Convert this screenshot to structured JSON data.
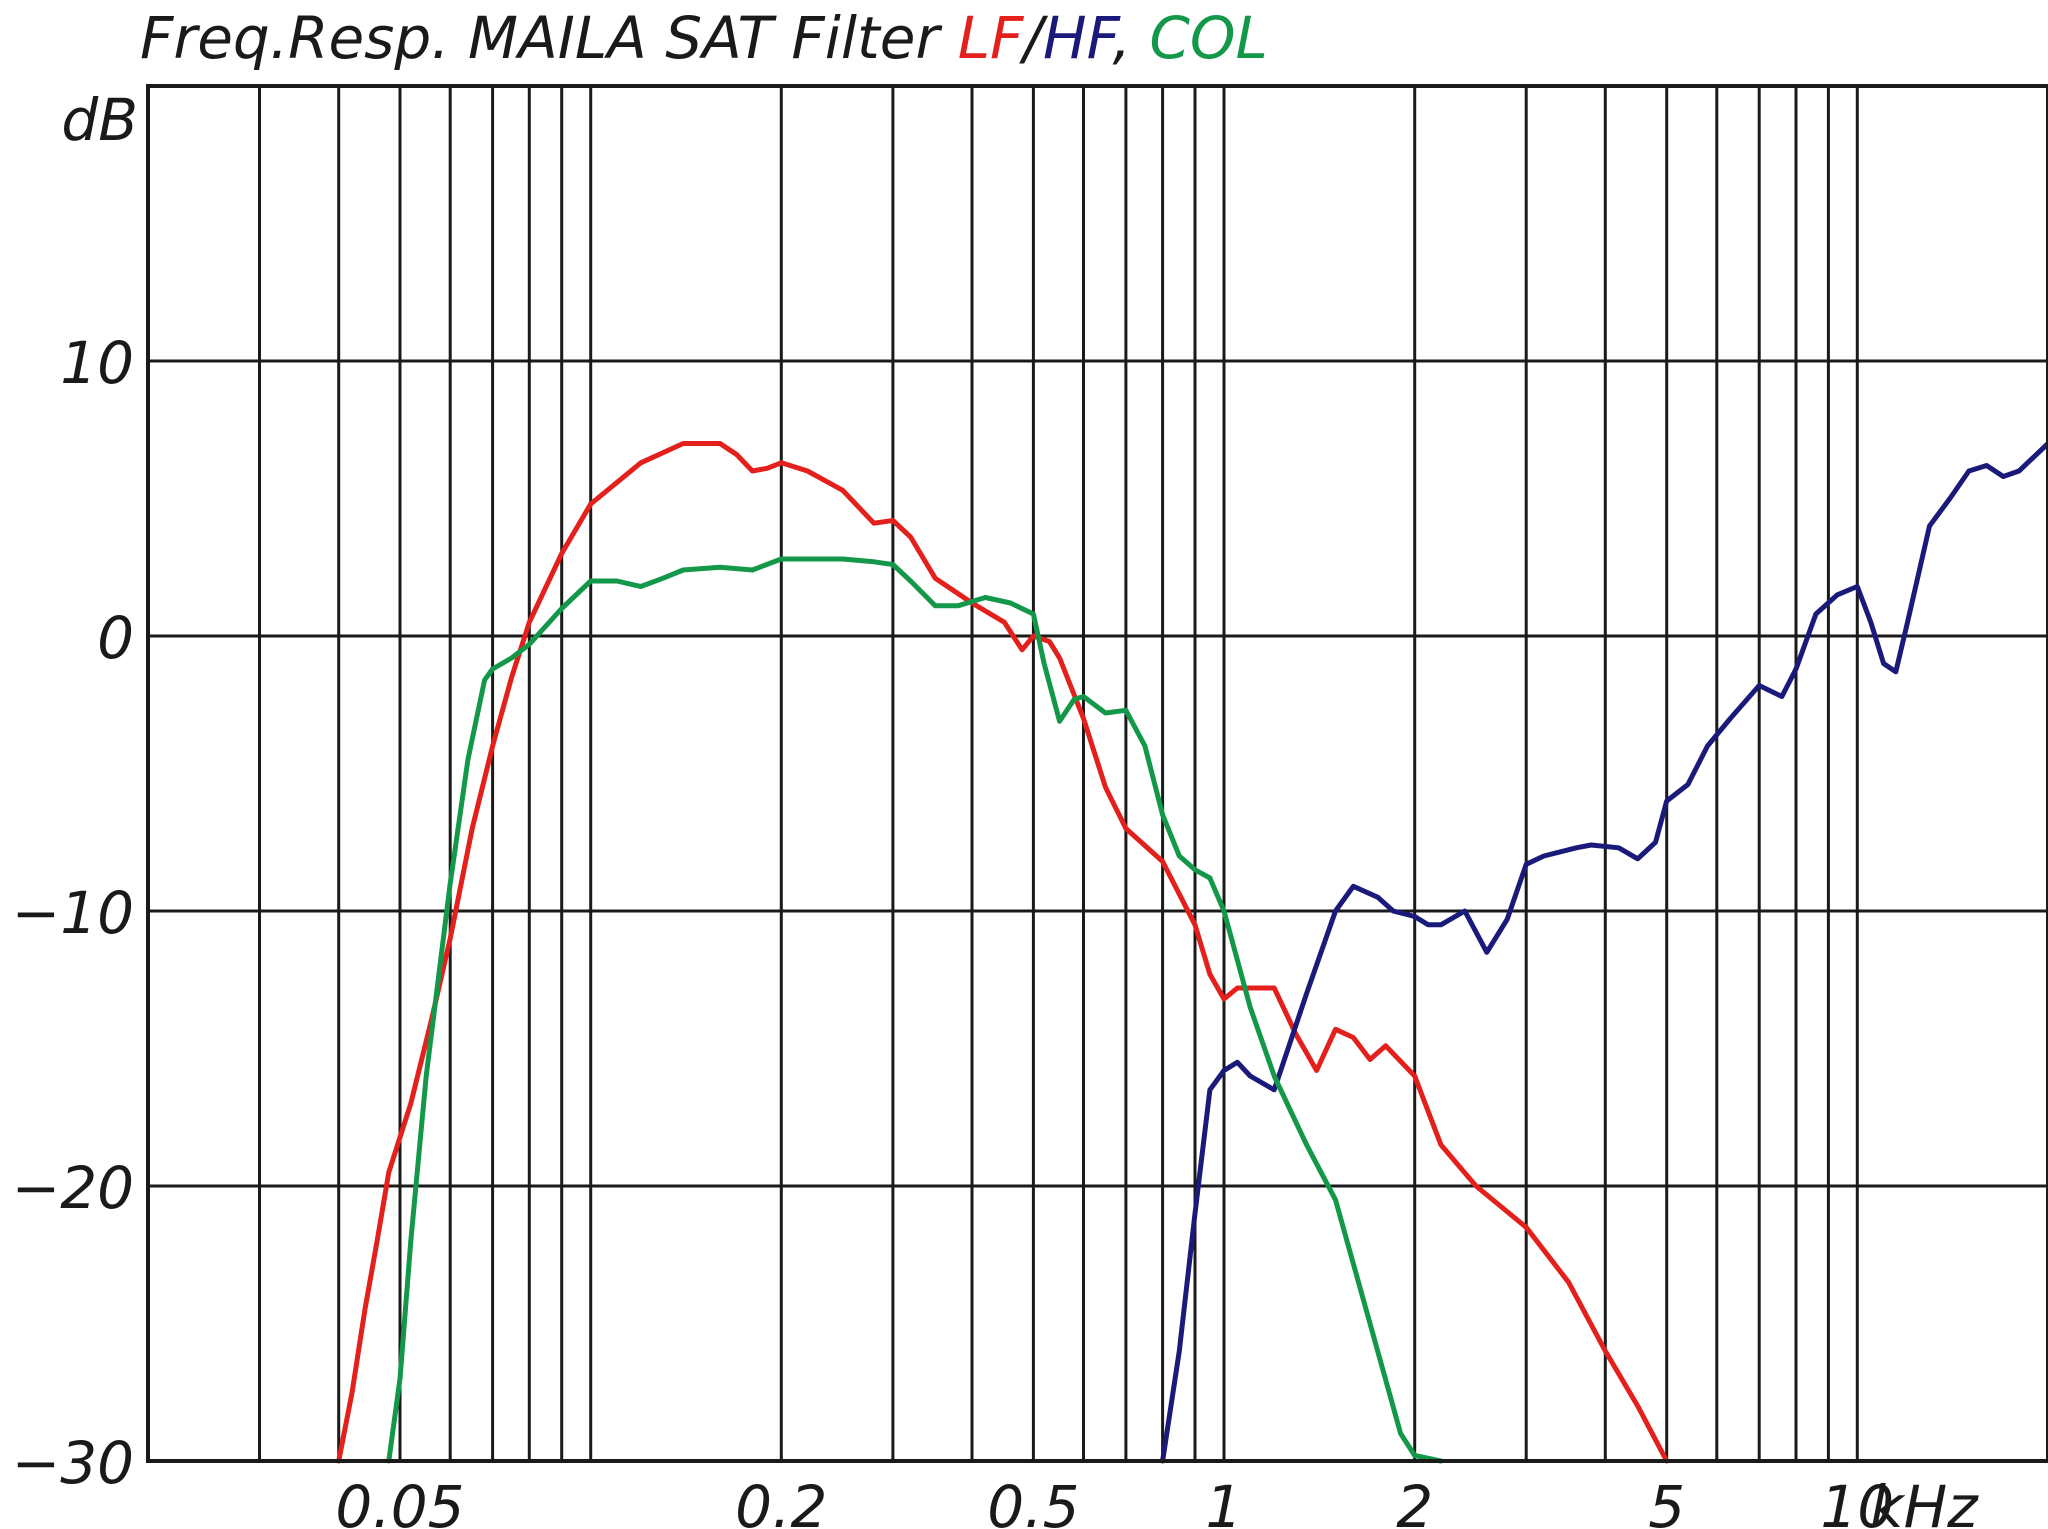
{
  "chart_data": {
    "type": "line",
    "title": {
      "prefix": "Freq.Resp. MAILA SAT Filter ",
      "parts": [
        {
          "text": "LF",
          "color": "#e3201b"
        },
        {
          "text": "/",
          "color": "#1a1a1a"
        },
        {
          "text": "HF",
          "color": "#1a1a7a"
        },
        {
          "text": ", ",
          "color": "#1a1a1a"
        },
        {
          "text": "COL",
          "color": "#13984a"
        }
      ]
    },
    "ylabel": "dB",
    "xunit": "kHz",
    "x_scale": "log",
    "xlim": [
      0.02,
      20
    ],
    "ylim": [
      -30,
      20
    ],
    "grid": true,
    "y_ticks": [
      {
        "value": 10,
        "label": "10"
      },
      {
        "value": 0,
        "label": "0"
      },
      {
        "value": -10,
        "label": "−10"
      },
      {
        "value": -20,
        "label": "−20"
      },
      {
        "value": -30,
        "label": "−30"
      }
    ],
    "x_tick_labels": [
      {
        "value": 0.05,
        "label": "0.05"
      },
      {
        "value": 0.2,
        "label": "0.2"
      },
      {
        "value": 0.5,
        "label": "0.5"
      },
      {
        "value": 1,
        "label": "1"
      },
      {
        "value": 2,
        "label": "2"
      },
      {
        "value": 5,
        "label": "5"
      },
      {
        "value": 10,
        "label": "10"
      }
    ],
    "x_unit_label": "kHz",
    "x_gridlines": [
      0.03,
      0.04,
      0.05,
      0.06,
      0.07,
      0.08,
      0.09,
      0.1,
      0.2,
      0.3,
      0.4,
      0.5,
      0.6,
      0.7,
      0.8,
      0.9,
      1,
      2,
      3,
      4,
      5,
      6,
      7,
      8,
      9,
      10
    ],
    "series": [
      {
        "name": "LF",
        "color": "#e3201b",
        "points": [
          [
            0.04,
            -30
          ],
          [
            0.042,
            -27.5
          ],
          [
            0.044,
            -24.5
          ],
          [
            0.046,
            -22
          ],
          [
            0.048,
            -19.5
          ],
          [
            0.052,
            -17
          ],
          [
            0.056,
            -14
          ],
          [
            0.06,
            -11
          ],
          [
            0.065,
            -7
          ],
          [
            0.07,
            -4
          ],
          [
            0.075,
            -1.5
          ],
          [
            0.08,
            0.5
          ],
          [
            0.09,
            3
          ],
          [
            0.1,
            4.8
          ],
          [
            0.12,
            6.3
          ],
          [
            0.14,
            7
          ],
          [
            0.16,
            7
          ],
          [
            0.17,
            6.6
          ],
          [
            0.18,
            6
          ],
          [
            0.19,
            6.1
          ],
          [
            0.2,
            6.3
          ],
          [
            0.22,
            6
          ],
          [
            0.25,
            5.3
          ],
          [
            0.28,
            4.1
          ],
          [
            0.3,
            4.2
          ],
          [
            0.32,
            3.6
          ],
          [
            0.35,
            2.1
          ],
          [
            0.4,
            1.2
          ],
          [
            0.45,
            0.5
          ],
          [
            0.48,
            -0.5
          ],
          [
            0.5,
            0
          ],
          [
            0.53,
            -0.2
          ],
          [
            0.55,
            -0.8
          ],
          [
            0.6,
            -3
          ],
          [
            0.65,
            -5.5
          ],
          [
            0.7,
            -7
          ],
          [
            0.8,
            -8.2
          ],
          [
            0.9,
            -10.5
          ],
          [
            0.95,
            -12.3
          ],
          [
            1.0,
            -13.2
          ],
          [
            1.05,
            -12.8
          ],
          [
            1.2,
            -12.8
          ],
          [
            1.3,
            -14.5
          ],
          [
            1.4,
            -15.8
          ],
          [
            1.5,
            -14.3
          ],
          [
            1.6,
            -14.6
          ],
          [
            1.7,
            -15.4
          ],
          [
            1.8,
            -14.9
          ],
          [
            2.0,
            -16
          ],
          [
            2.2,
            -18.5
          ],
          [
            2.5,
            -20
          ],
          [
            3.0,
            -21.5
          ],
          [
            3.5,
            -23.5
          ],
          [
            4.0,
            -26
          ],
          [
            4.5,
            -28
          ],
          [
            5.0,
            -30
          ]
        ]
      },
      {
        "name": "HF",
        "color": "#1a1a7a",
        "points": [
          [
            0.8,
            -30
          ],
          [
            0.85,
            -26
          ],
          [
            0.9,
            -21
          ],
          [
            0.95,
            -16.5
          ],
          [
            1.0,
            -15.8
          ],
          [
            1.05,
            -15.5
          ],
          [
            1.1,
            -16
          ],
          [
            1.2,
            -16.5
          ],
          [
            1.35,
            -13
          ],
          [
            1.5,
            -10
          ],
          [
            1.6,
            -9.1
          ],
          [
            1.75,
            -9.5
          ],
          [
            1.85,
            -10
          ],
          [
            2.0,
            -10.2
          ],
          [
            2.1,
            -10.5
          ],
          [
            2.2,
            -10.5
          ],
          [
            2.4,
            -10
          ],
          [
            2.6,
            -11.5
          ],
          [
            2.8,
            -10.3
          ],
          [
            3.0,
            -8.3
          ],
          [
            3.2,
            -8
          ],
          [
            3.6,
            -7.7
          ],
          [
            3.8,
            -7.6
          ],
          [
            4.2,
            -7.7
          ],
          [
            4.5,
            -8.1
          ],
          [
            4.8,
            -7.5
          ],
          [
            5.0,
            -6
          ],
          [
            5.4,
            -5.4
          ],
          [
            5.8,
            -4
          ],
          [
            6.3,
            -3
          ],
          [
            7.0,
            -1.8
          ],
          [
            7.6,
            -2.2
          ],
          [
            8.0,
            -1.2
          ],
          [
            8.6,
            0.8
          ],
          [
            9.3,
            1.5
          ],
          [
            10.0,
            1.8
          ],
          [
            10.5,
            0.5
          ],
          [
            11.0,
            -1
          ],
          [
            11.5,
            -1.3
          ],
          [
            12.0,
            0.5
          ],
          [
            13.0,
            4
          ],
          [
            14.0,
            5
          ],
          [
            15.0,
            6
          ],
          [
            16.0,
            6.2
          ],
          [
            17.0,
            5.8
          ],
          [
            18.0,
            6
          ],
          [
            20.0,
            7
          ]
        ]
      },
      {
        "name": "COL",
        "color": "#13984a",
        "points": [
          [
            0.048,
            -30
          ],
          [
            0.05,
            -27
          ],
          [
            0.052,
            -22
          ],
          [
            0.055,
            -16
          ],
          [
            0.06,
            -9
          ],
          [
            0.064,
            -4.5
          ],
          [
            0.068,
            -1.6
          ],
          [
            0.07,
            -1.2
          ],
          [
            0.075,
            -0.8
          ],
          [
            0.08,
            -0.3
          ],
          [
            0.09,
            1
          ],
          [
            0.1,
            2
          ],
          [
            0.11,
            2
          ],
          [
            0.12,
            1.8
          ],
          [
            0.13,
            2.1
          ],
          [
            0.14,
            2.4
          ],
          [
            0.16,
            2.5
          ],
          [
            0.18,
            2.4
          ],
          [
            0.2,
            2.8
          ],
          [
            0.25,
            2.8
          ],
          [
            0.28,
            2.7
          ],
          [
            0.3,
            2.6
          ],
          [
            0.32,
            2
          ],
          [
            0.35,
            1.1
          ],
          [
            0.38,
            1.1
          ],
          [
            0.42,
            1.4
          ],
          [
            0.46,
            1.2
          ],
          [
            0.5,
            0.8
          ],
          [
            0.52,
            -1
          ],
          [
            0.55,
            -3.1
          ],
          [
            0.58,
            -2.3
          ],
          [
            0.6,
            -2.2
          ],
          [
            0.65,
            -2.8
          ],
          [
            0.7,
            -2.7
          ],
          [
            0.75,
            -4
          ],
          [
            0.8,
            -6.5
          ],
          [
            0.85,
            -8
          ],
          [
            0.9,
            -8.5
          ],
          [
            0.95,
            -8.8
          ],
          [
            1.0,
            -10
          ],
          [
            1.1,
            -13.5
          ],
          [
            1.2,
            -16
          ],
          [
            1.35,
            -18.5
          ],
          [
            1.5,
            -20.5
          ],
          [
            1.7,
            -25
          ],
          [
            1.9,
            -29
          ],
          [
            2.0,
            -29.8
          ],
          [
            2.2,
            -30
          ]
        ]
      }
    ]
  }
}
